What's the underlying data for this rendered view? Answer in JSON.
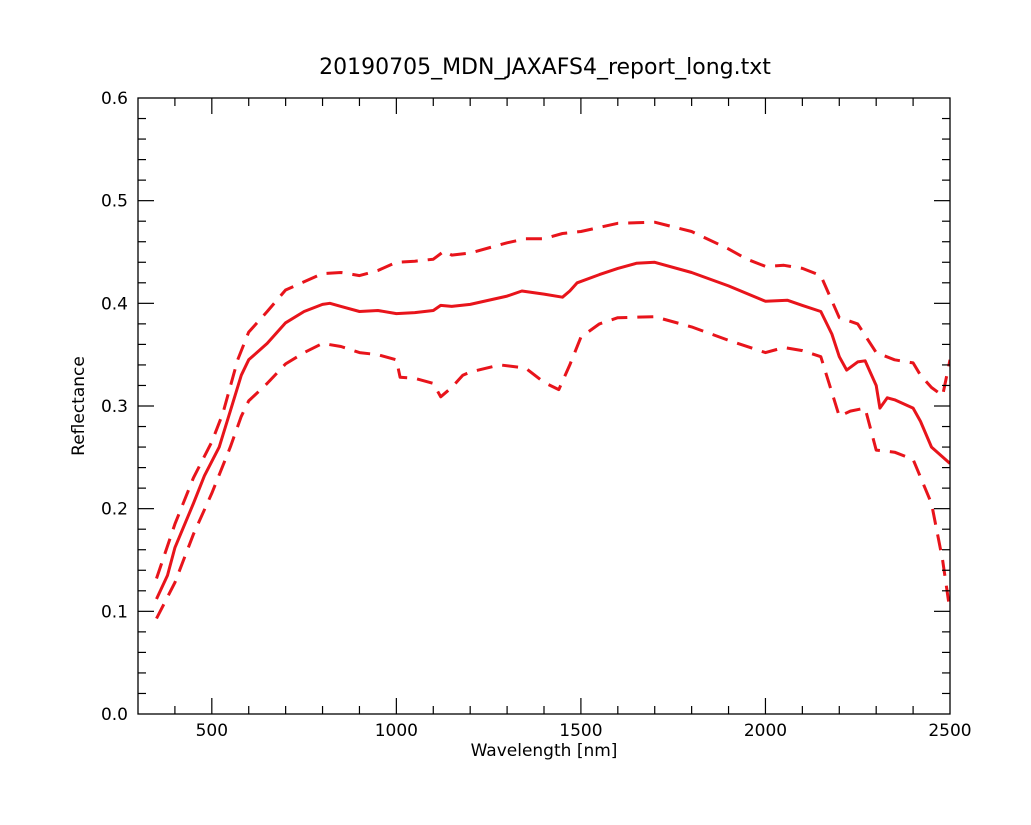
{
  "chart_data": {
    "type": "line",
    "title": "20190705_MDN_JAXAFS4_report_long.txt",
    "xlabel": "Wavelength [nm]",
    "ylabel": "Reflectance",
    "xlim": [
      300,
      2500
    ],
    "ylim": [
      0.0,
      0.6
    ],
    "x_ticks": [
      500,
      1000,
      1500,
      2000,
      2500
    ],
    "y_ticks": [
      0.0,
      0.1,
      0.2,
      0.3,
      0.4,
      0.5,
      0.6
    ],
    "grid": false,
    "legend": "none",
    "color": "#e8141b",
    "series": [
      {
        "style": "solid",
        "points": [
          [
            350,
            0.112
          ],
          [
            380,
            0.135
          ],
          [
            400,
            0.162
          ],
          [
            450,
            0.205
          ],
          [
            480,
            0.232
          ],
          [
            520,
            0.26
          ],
          [
            550,
            0.295
          ],
          [
            580,
            0.33
          ],
          [
            600,
            0.345
          ],
          [
            650,
            0.361
          ],
          [
            700,
            0.381
          ],
          [
            750,
            0.392
          ],
          [
            800,
            0.399
          ],
          [
            820,
            0.4
          ],
          [
            850,
            0.397
          ],
          [
            900,
            0.392
          ],
          [
            950,
            0.393
          ],
          [
            1000,
            0.39
          ],
          [
            1050,
            0.391
          ],
          [
            1100,
            0.393
          ],
          [
            1120,
            0.398
          ],
          [
            1150,
            0.397
          ],
          [
            1200,
            0.399
          ],
          [
            1300,
            0.407
          ],
          [
            1340,
            0.412
          ],
          [
            1400,
            0.409
          ],
          [
            1450,
            0.406
          ],
          [
            1470,
            0.412
          ],
          [
            1490,
            0.42
          ],
          [
            1550,
            0.428
          ],
          [
            1600,
            0.434
          ],
          [
            1650,
            0.439
          ],
          [
            1700,
            0.44
          ],
          [
            1800,
            0.43
          ],
          [
            1900,
            0.417
          ],
          [
            2000,
            0.402
          ],
          [
            2060,
            0.403
          ],
          [
            2100,
            0.398
          ],
          [
            2150,
            0.392
          ],
          [
            2180,
            0.37
          ],
          [
            2200,
            0.348
          ],
          [
            2220,
            0.335
          ],
          [
            2250,
            0.343
          ],
          [
            2270,
            0.344
          ],
          [
            2300,
            0.32
          ],
          [
            2310,
            0.298
          ],
          [
            2330,
            0.308
          ],
          [
            2350,
            0.306
          ],
          [
            2400,
            0.298
          ],
          [
            2420,
            0.285
          ],
          [
            2450,
            0.26
          ],
          [
            2500,
            0.244
          ]
        ]
      },
      {
        "style": "dashed",
        "points": [
          [
            350,
            0.132
          ],
          [
            400,
            0.185
          ],
          [
            450,
            0.23
          ],
          [
            500,
            0.265
          ],
          [
            530,
            0.293
          ],
          [
            570,
            0.345
          ],
          [
            600,
            0.372
          ],
          [
            650,
            0.392
          ],
          [
            700,
            0.413
          ],
          [
            750,
            0.421
          ],
          [
            800,
            0.429
          ],
          [
            850,
            0.43
          ],
          [
            900,
            0.427
          ],
          [
            950,
            0.432
          ],
          [
            1000,
            0.44
          ],
          [
            1050,
            0.441
          ],
          [
            1100,
            0.443
          ],
          [
            1130,
            0.451
          ],
          [
            1150,
            0.447
          ],
          [
            1200,
            0.449
          ],
          [
            1300,
            0.459
          ],
          [
            1350,
            0.463
          ],
          [
            1400,
            0.463
          ],
          [
            1450,
            0.468
          ],
          [
            1500,
            0.47
          ],
          [
            1600,
            0.478
          ],
          [
            1700,
            0.479
          ],
          [
            1800,
            0.47
          ],
          [
            1900,
            0.453
          ],
          [
            1950,
            0.443
          ],
          [
            2000,
            0.436
          ],
          [
            2050,
            0.437
          ],
          [
            2100,
            0.434
          ],
          [
            2150,
            0.427
          ],
          [
            2200,
            0.386
          ],
          [
            2250,
            0.38
          ],
          [
            2300,
            0.352
          ],
          [
            2350,
            0.345
          ],
          [
            2400,
            0.342
          ],
          [
            2420,
            0.33
          ],
          [
            2450,
            0.318
          ],
          [
            2480,
            0.31
          ],
          [
            2500,
            0.345
          ]
        ]
      },
      {
        "style": "dashed",
        "points": [
          [
            350,
            0.093
          ],
          [
            400,
            0.128
          ],
          [
            450,
            0.175
          ],
          [
            500,
            0.215
          ],
          [
            550,
            0.26
          ],
          [
            580,
            0.29
          ],
          [
            600,
            0.305
          ],
          [
            650,
            0.322
          ],
          [
            700,
            0.341
          ],
          [
            750,
            0.352
          ],
          [
            800,
            0.361
          ],
          [
            850,
            0.358
          ],
          [
            900,
            0.352
          ],
          [
            950,
            0.35
          ],
          [
            1000,
            0.345
          ],
          [
            1010,
            0.328
          ],
          [
            1050,
            0.327
          ],
          [
            1100,
            0.322
          ],
          [
            1120,
            0.309
          ],
          [
            1150,
            0.318
          ],
          [
            1180,
            0.33
          ],
          [
            1200,
            0.333
          ],
          [
            1280,
            0.34
          ],
          [
            1350,
            0.337
          ],
          [
            1400,
            0.323
          ],
          [
            1440,
            0.316
          ],
          [
            1470,
            0.34
          ],
          [
            1500,
            0.367
          ],
          [
            1550,
            0.38
          ],
          [
            1600,
            0.386
          ],
          [
            1700,
            0.387
          ],
          [
            1800,
            0.377
          ],
          [
            1900,
            0.364
          ],
          [
            2000,
            0.352
          ],
          [
            2050,
            0.357
          ],
          [
            2100,
            0.354
          ],
          [
            2150,
            0.348
          ],
          [
            2200,
            0.29
          ],
          [
            2230,
            0.295
          ],
          [
            2270,
            0.298
          ],
          [
            2300,
            0.257
          ],
          [
            2350,
            0.255
          ],
          [
            2400,
            0.248
          ],
          [
            2450,
            0.205
          ],
          [
            2480,
            0.15
          ],
          [
            2500,
            0.1
          ]
        ]
      }
    ]
  }
}
